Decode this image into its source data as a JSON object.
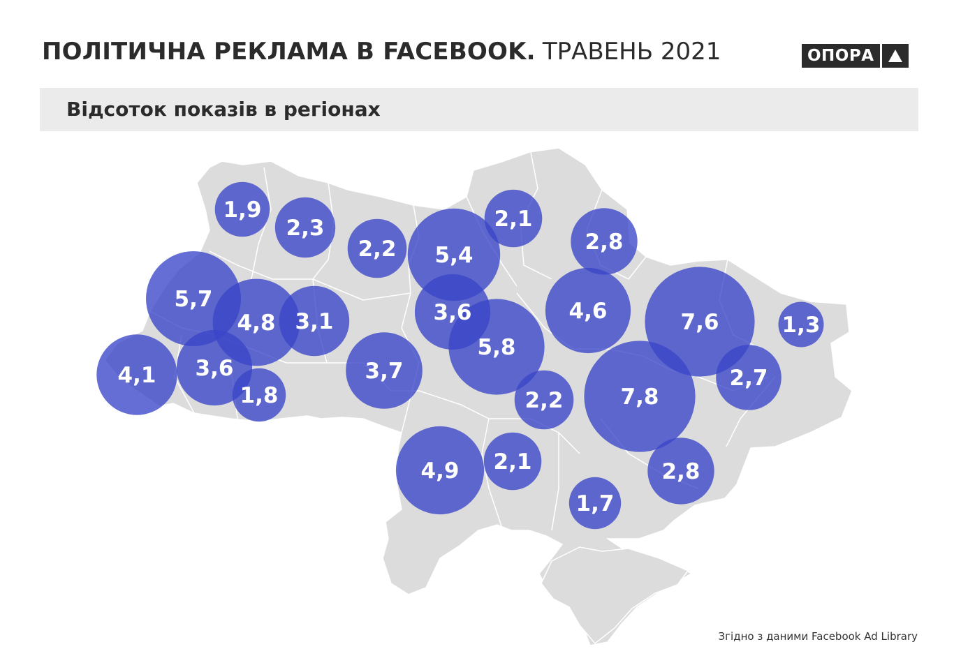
{
  "header": {
    "title_bold": "ПОЛІТИЧНА РЕКЛАМА В FACEBOOK.",
    "title_light": "ТРАВЕНЬ 2021"
  },
  "logo": {
    "text": "ОПОРА",
    "icon": "triangle-icon"
  },
  "subtitle": "Відсоток показів в регіонах",
  "map": {
    "region_fill": "#dcdcdc",
    "border_color": "#ffffff",
    "bubble_color": "#3a45c8",
    "values": [
      "1,9",
      "2,3",
      "2,2",
      "5,4",
      "2,1",
      "2,8",
      "5,7",
      "4,8",
      "3,1",
      "3,6",
      "4,6",
      "7,6",
      "1,3",
      "4,1",
      "3,6",
      "1,8",
      "3,7",
      "5,8",
      "2,2",
      "7,8",
      "2,7",
      "4,9",
      "2,1",
      "2,8",
      "1,7"
    ]
  },
  "source": "Згідно з даними Facebook Ad Library"
}
